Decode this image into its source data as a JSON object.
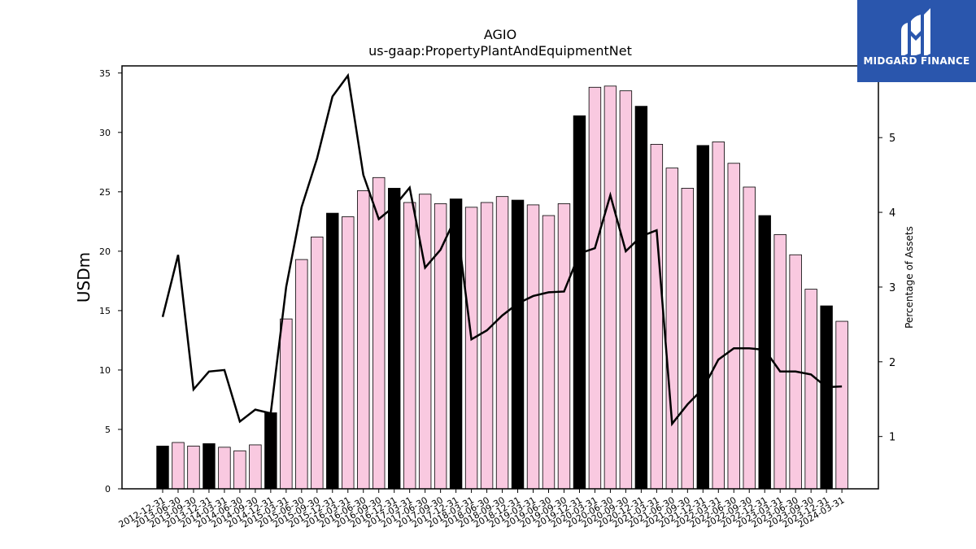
{
  "chart_data": {
    "type": "bar",
    "title": "AGIO",
    "subtitle": "us-gaap:PropertyPlantAndEquipmentNet",
    "ylabel": "USDm",
    "y2label": "Percentage of Assets",
    "ylim": [
      0,
      35.6
    ],
    "y2lim": [
      0.3,
      5.96
    ],
    "yticks": [
      0,
      5,
      10,
      15,
      20,
      25,
      30,
      35
    ],
    "y2ticks": [
      1,
      2,
      3,
      4,
      5
    ],
    "grid": false,
    "categories": [
      "2012-12-31",
      "2013-06-30",
      "2013-09-30",
      "2013-12-31",
      "2014-03-31",
      "2014-06-30",
      "2014-09-30",
      "2014-12-31",
      "2015-03-31",
      "2015-06-30",
      "2015-09-30",
      "2015-12-31",
      "2016-03-31",
      "2016-06-30",
      "2016-09-30",
      "2016-12-31",
      "2017-03-31",
      "2017-06-30",
      "2017-09-30",
      "2017-12-31",
      "2018-03-31",
      "2018-06-30",
      "2018-09-30",
      "2018-12-31",
      "2019-03-31",
      "2019-06-30",
      "2019-09-30",
      "2019-12-31",
      "2020-03-31",
      "2020-06-30",
      "2020-09-30",
      "2020-12-31",
      "2021-03-31",
      "2021-06-30",
      "2021-09-30",
      "2021-12-31",
      "2022-03-31",
      "2022-06-30",
      "2022-09-30",
      "2022-12-31",
      "2023-03-31",
      "2023-06-30",
      "2023-09-30",
      "2023-12-31",
      "2024-03-31"
    ],
    "series": [
      {
        "kind": "bar",
        "values": [
          3.6,
          3.9,
          3.6,
          3.8,
          3.5,
          3.2,
          3.7,
          6.4,
          14.3,
          19.3,
          21.2,
          23.2,
          22.9,
          25.1,
          26.2,
          25.3,
          24.1,
          24.8,
          24.0,
          24.4,
          23.7,
          24.1,
          24.6,
          24.3,
          23.9,
          23.0,
          24.0,
          31.4,
          33.8,
          33.9,
          33.5,
          32.2,
          29.0,
          27.0,
          25.3,
          28.9,
          29.2,
          27.4,
          25.4,
          23.0,
          21.4,
          19.7,
          16.8,
          15.4,
          14.1
        ],
        "year_end": [
          true,
          false,
          false,
          true,
          false,
          false,
          false,
          true,
          false,
          false,
          false,
          true,
          false,
          false,
          false,
          true,
          false,
          false,
          false,
          true,
          false,
          false,
          false,
          true,
          false,
          false,
          false,
          true,
          false,
          false,
          false,
          true,
          false,
          false,
          false,
          true,
          false,
          false,
          false,
          true,
          false,
          false,
          false,
          true,
          false
        ],
        "colors": {
          "year_end": "#000000",
          "quarter": "#f9c9e0"
        }
      },
      {
        "kind": "line",
        "axis": "right",
        "values": [
          2.6,
          3.43,
          1.63,
          1.87,
          1.89,
          1.2,
          1.36,
          1.31,
          3.0,
          4.07,
          4.72,
          5.55,
          5.83,
          4.5,
          3.91,
          4.08,
          4.33,
          3.26,
          3.5,
          3.94,
          2.3,
          2.42,
          2.62,
          2.78,
          2.88,
          2.93,
          2.94,
          3.45,
          3.52,
          4.23,
          3.48,
          3.68,
          3.76,
          1.17,
          1.43,
          1.64,
          2.03,
          2.18,
          2.18,
          2.16,
          1.87,
          1.87,
          1.83,
          1.66,
          1.67
        ],
        "color": "#000000"
      }
    ]
  },
  "logo": {
    "text": "MIDGARD FINANCE",
    "color": "#2a56ad"
  }
}
